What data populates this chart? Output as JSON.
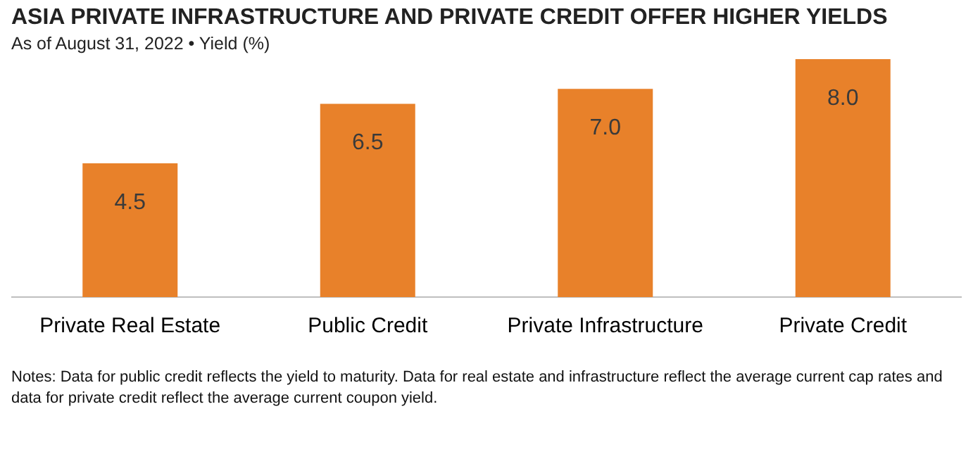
{
  "chart_data": {
    "type": "bar",
    "title": "ASIA PRIVATE INFRASTRUCTURE AND PRIVATE CREDIT OFFER HIGHER YIELDS",
    "subtitle": "As of August 31, 2022 • Yield (%)",
    "categories": [
      "Private Real Estate",
      "Public Credit",
      "Private Infrastructure",
      "Private Credit"
    ],
    "values": [
      4.5,
      6.5,
      7.0,
      8.0
    ],
    "value_labels": [
      "4.5",
      "6.5",
      "7.0",
      "8.0"
    ],
    "color": "#e8812a",
    "grid": false,
    "annotations": [
      "Notes: Data for public credit reflects the yield to maturity. Data for real estate and infrastructure reflect the average current cap rates and data for private credit reflect the average current coupon yield."
    ]
  }
}
